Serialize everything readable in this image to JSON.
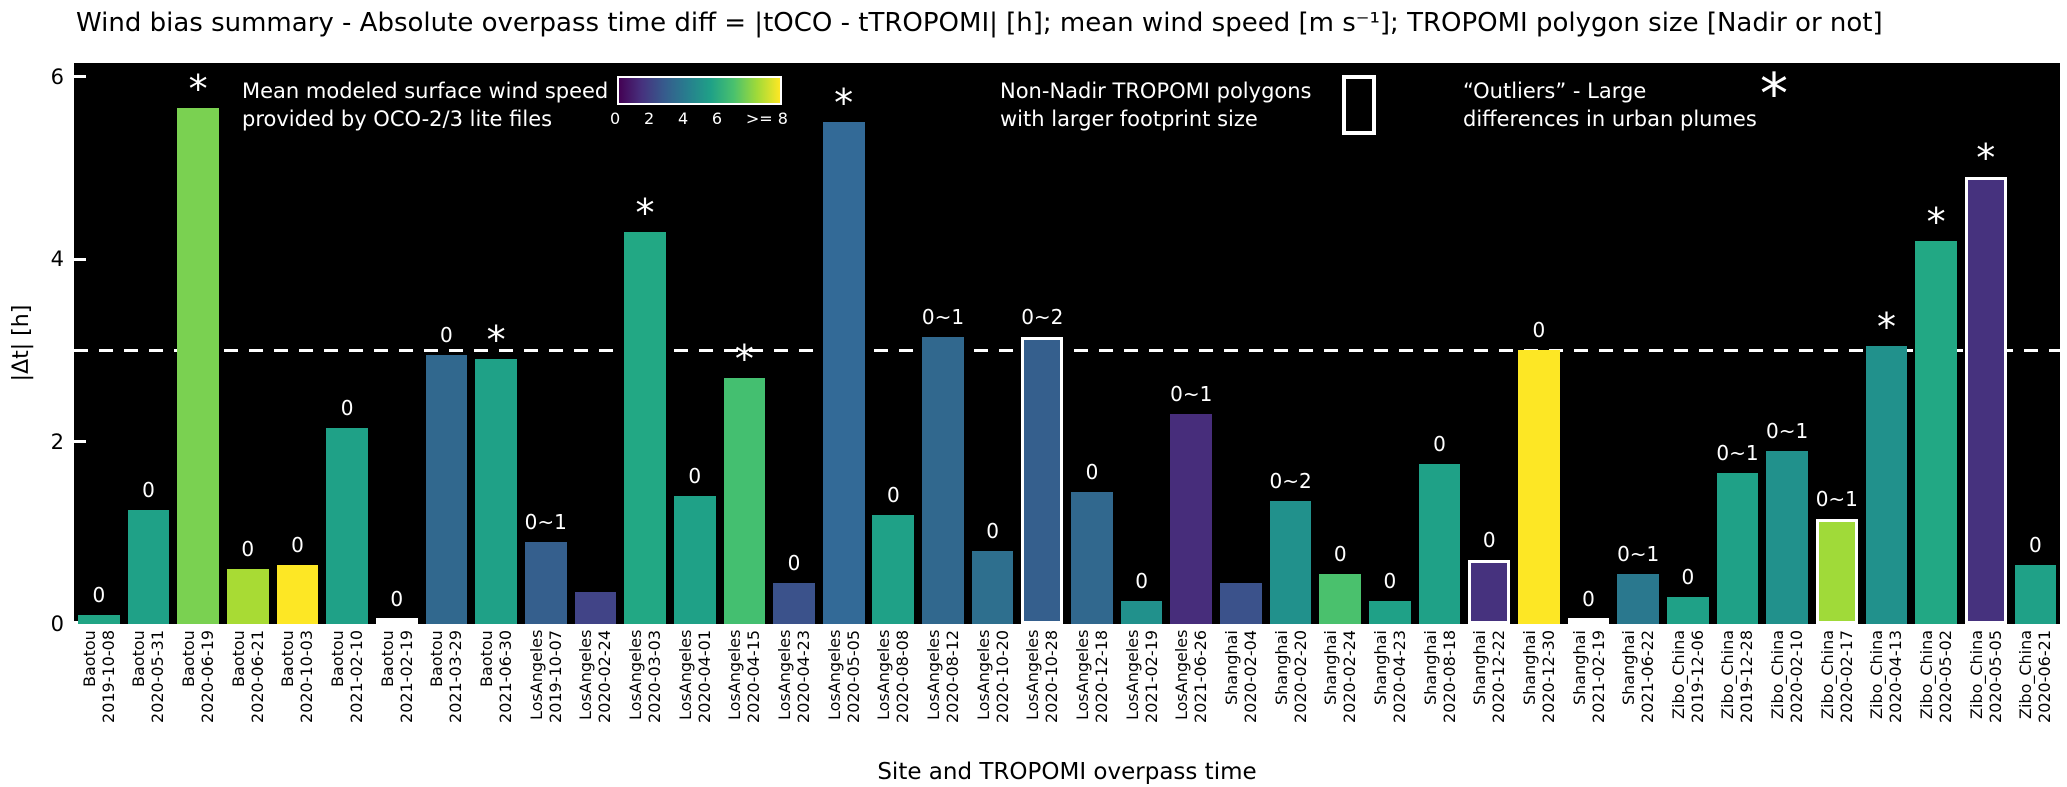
{
  "chart_data": {
    "type": "bar",
    "title": "Wind bias summary - Absolute overpass time diff = |tOCO - tTROPOMI| [h];  mean wind speed [m s⁻¹]; TROPOMI polygon size [Nadir or not]",
    "xlabel": "Site and TROPOMI overpass time",
    "ylabel": "|Δt| [h]",
    "ylim": [
      0,
      6
    ],
    "yticks": [
      "0",
      "2",
      "4",
      "6"
    ],
    "threshold_line_y": 3,
    "plot_background": "#000000",
    "legend": {
      "wind_speed": {
        "lines": [
          "Mean modeled surface wind speed",
          "provided by OCO-2/3 lite files"
        ],
        "colorbar_ticks": [
          "0",
          "2",
          "4",
          "6",
          ">= 8"
        ],
        "colorbar_colors": [
          "#440154",
          "#46327e",
          "#365c8d",
          "#277f8e",
          "#1fa187",
          "#4ac16d",
          "#a0da39",
          "#fde725"
        ]
      },
      "non_nadir": {
        "lines": [
          "Non-Nadir TROPOMI polygons",
          "with larger footprint size"
        ]
      },
      "outliers": {
        "lines": [
          "“Outliers” - Large",
          "differences in urban plumes"
        ],
        "symbol": "*"
      }
    },
    "bars": [
      {
        "site": "Baotou",
        "date": "2019-10-08",
        "value": 0.1,
        "label": "0",
        "color": "#21a585",
        "outlined": false
      },
      {
        "site": "Baotou",
        "date": "2020-05-31",
        "value": 1.25,
        "label": "0",
        "color": "#1fa187",
        "outlined": false
      },
      {
        "site": "Baotou",
        "date": "2020-06-19",
        "value": 5.65,
        "label": "*",
        "color": "#7ad151",
        "outlined": false
      },
      {
        "site": "Baotou",
        "date": "2020-06-21",
        "value": 0.6,
        "label": "0",
        "color": "#a8db34",
        "outlined": false
      },
      {
        "site": "Baotou",
        "date": "2020-10-03",
        "value": 0.65,
        "label": "0",
        "color": "#fde725",
        "outlined": false
      },
      {
        "site": "Baotou",
        "date": "2021-02-10",
        "value": 2.15,
        "label": "0",
        "color": "#1fa187",
        "outlined": false
      },
      {
        "site": "Baotou",
        "date": "2021-02-19",
        "value": 0.06,
        "label": "0",
        "color": "#fde725",
        "outlined": true
      },
      {
        "site": "Baotou",
        "date": "2021-03-29",
        "value": 2.95,
        "label": "0",
        "color": "#31688e",
        "outlined": false
      },
      {
        "site": "Baotou",
        "date": "2021-06-30",
        "value": 2.9,
        "label": "*",
        "color": "#1fa187",
        "outlined": false
      },
      {
        "site": "LosAngeles",
        "date": "2019-10-07",
        "value": 0.9,
        "label": "0~1",
        "color": "#355f8d",
        "outlined": false
      },
      {
        "site": "LosAngeles",
        "date": "2020-02-24",
        "value": 0.35,
        "label": "",
        "color": "#414487",
        "outlined": false
      },
      {
        "site": "LosAngeles",
        "date": "2020-03-03",
        "value": 4.3,
        "label": "*",
        "color": "#22a884",
        "outlined": false
      },
      {
        "site": "LosAngeles",
        "date": "2020-04-01",
        "value": 1.4,
        "label": "0",
        "color": "#1fa187",
        "outlined": false
      },
      {
        "site": "LosAngeles",
        "date": "2020-04-15",
        "value": 2.7,
        "label": "*",
        "color": "#44bf70",
        "outlined": false
      },
      {
        "site": "LosAngeles",
        "date": "2020-04-23",
        "value": 0.45,
        "label": "0",
        "color": "#3b528b",
        "outlined": false
      },
      {
        "site": "LosAngeles",
        "date": "2020-05-05",
        "value": 5.5,
        "label": "*",
        "color": "#336a97",
        "outlined": false
      },
      {
        "site": "LosAngeles",
        "date": "2020-08-08",
        "value": 1.2,
        "label": "0",
        "color": "#1fa187",
        "outlined": false
      },
      {
        "site": "LosAngeles",
        "date": "2020-08-12",
        "value": 3.15,
        "label": "0~1",
        "color": "#31688e",
        "outlined": false
      },
      {
        "site": "LosAngeles",
        "date": "2020-10-20",
        "value": 0.8,
        "label": "0",
        "color": "#2e6f8e",
        "outlined": false
      },
      {
        "site": "LosAngeles",
        "date": "2020-10-28",
        "value": 3.15,
        "label": "0~2",
        "color": "#355f8d",
        "outlined": true
      },
      {
        "site": "LosAngeles",
        "date": "2020-12-18",
        "value": 1.45,
        "label": "0",
        "color": "#31688e",
        "outlined": false
      },
      {
        "site": "LosAngeles",
        "date": "2021-02-19",
        "value": 0.25,
        "label": "0",
        "color": "#21918c",
        "outlined": false
      },
      {
        "site": "LosAngeles",
        "date": "2021-06-26",
        "value": 2.3,
        "label": "0~1",
        "color": "#472d7b",
        "outlined": false
      },
      {
        "site": "Shanghai",
        "date": "2020-02-04",
        "value": 0.45,
        "label": "",
        "color": "#3b528b",
        "outlined": false
      },
      {
        "site": "Shanghai",
        "date": "2020-02-20",
        "value": 1.35,
        "label": "0~2",
        "color": "#21918c",
        "outlined": false
      },
      {
        "site": "Shanghai",
        "date": "2020-02-24",
        "value": 0.55,
        "label": "0",
        "color": "#4ac16d",
        "outlined": false
      },
      {
        "site": "Shanghai",
        "date": "2020-04-23",
        "value": 0.25,
        "label": "0",
        "color": "#1fa187",
        "outlined": false
      },
      {
        "site": "Shanghai",
        "date": "2020-08-18",
        "value": 1.75,
        "label": "0",
        "color": "#1fa187",
        "outlined": false
      },
      {
        "site": "Shanghai",
        "date": "2020-12-22",
        "value": 0.7,
        "label": "0",
        "color": "#46327e",
        "outlined": true
      },
      {
        "site": "Shanghai",
        "date": "2020-12-30",
        "value": 3.0,
        "label": "0",
        "color": "#fde725",
        "outlined": false
      },
      {
        "site": "Shanghai",
        "date": "2021-02-19",
        "value": 0.06,
        "label": "0",
        "color": "#cccccc",
        "outlined": true
      },
      {
        "site": "Shanghai",
        "date": "2021-06-22",
        "value": 0.55,
        "label": "0~1",
        "color": "#2a788e",
        "outlined": false
      },
      {
        "site": "Zibo_China",
        "date": "2019-12-06",
        "value": 0.3,
        "label": "0",
        "color": "#1fa187",
        "outlined": false
      },
      {
        "site": "Zibo_China",
        "date": "2019-12-28",
        "value": 1.65,
        "label": "0~1",
        "color": "#1fa187",
        "outlined": false
      },
      {
        "site": "Zibo_China",
        "date": "2020-02-10",
        "value": 1.9,
        "label": "0~1",
        "color": "#21918c",
        "outlined": false
      },
      {
        "site": "Zibo_China",
        "date": "2020-02-17",
        "value": 1.15,
        "label": "0~1",
        "color": "#a0da39",
        "outlined": true
      },
      {
        "site": "Zibo_China",
        "date": "2020-04-13",
        "value": 3.05,
        "label": "*",
        "color": "#21918c",
        "outlined": false
      },
      {
        "site": "Zibo_China",
        "date": "2020-05-02",
        "value": 4.2,
        "label": "*",
        "color": "#22a884",
        "outlined": false
      },
      {
        "site": "Zibo_China",
        "date": "2020-05-05",
        "value": 4.9,
        "label": "*",
        "color": "#46327e",
        "outlined": true
      },
      {
        "site": "Zibo_China",
        "date": "2020-06-21",
        "value": 0.65,
        "label": "0",
        "color": "#1fa187",
        "outlined": false
      }
    ]
  }
}
